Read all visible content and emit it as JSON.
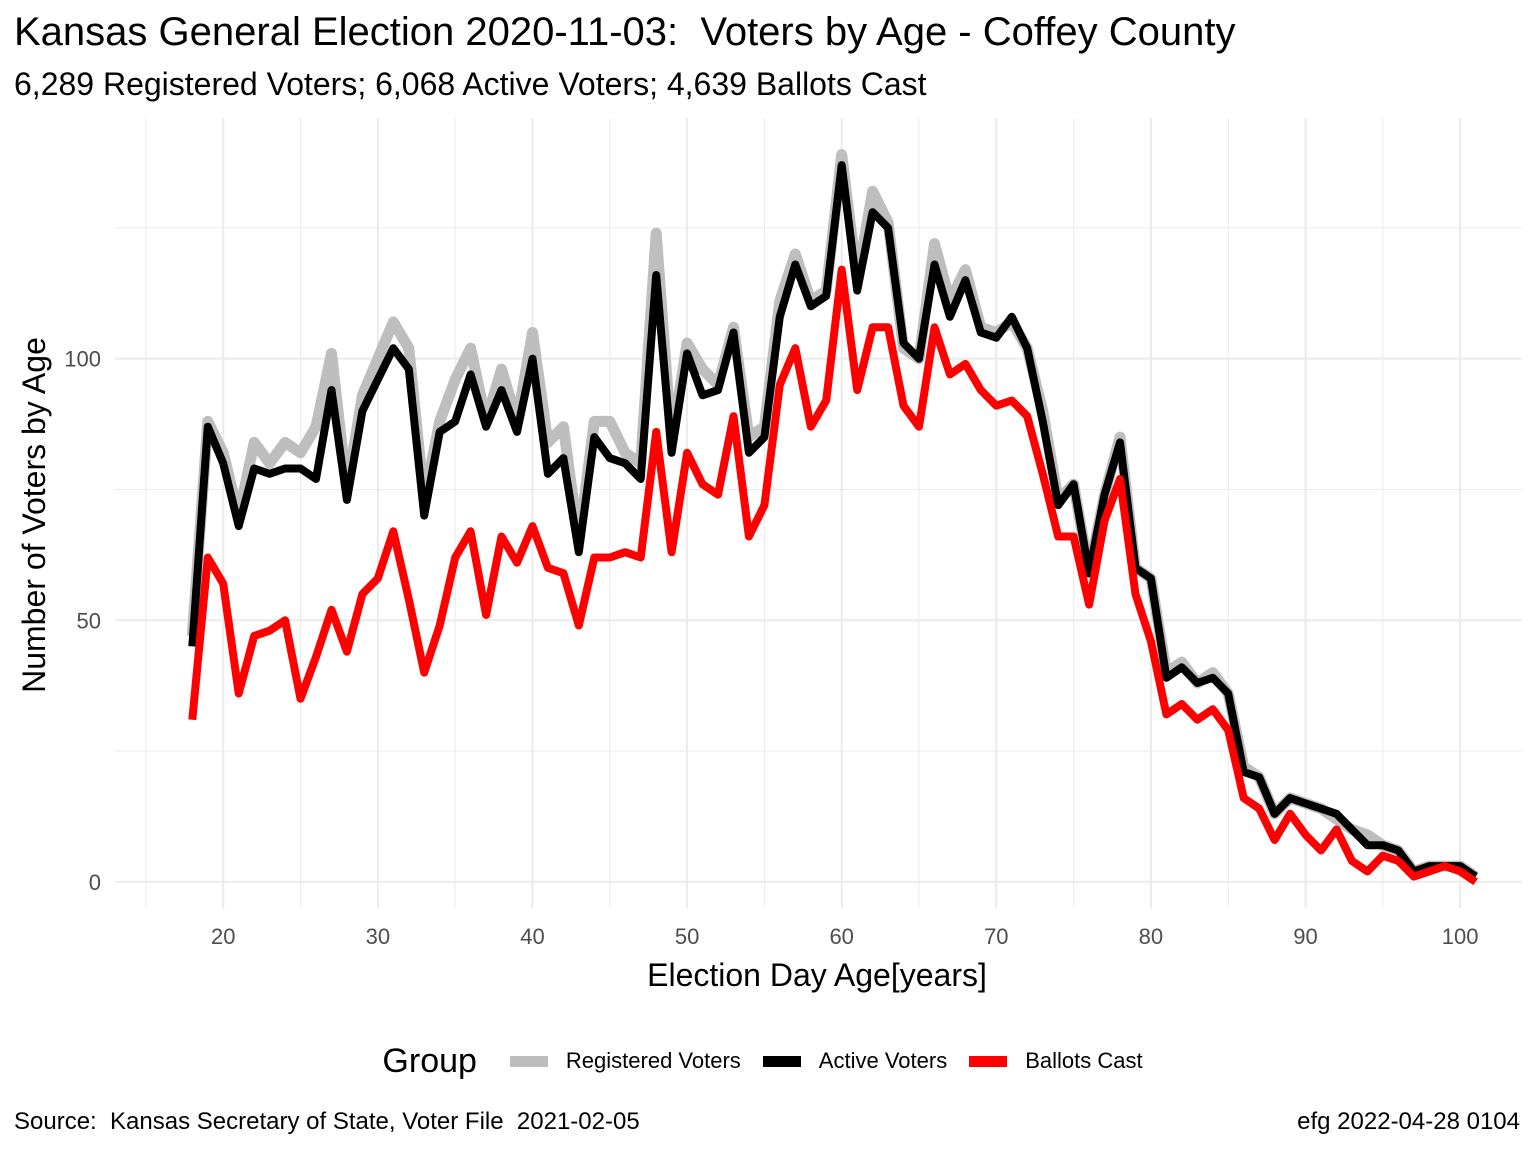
{
  "title": "Kansas General Election 2020-11-03:  Voters by Age - Coffey County",
  "subtitle": "6,289 Registered Voters; 6,068 Active Voters; 4,639 Ballots Cast",
  "caption_left": "Source:  Kansas Secretary of State, Voter File  2021-02-05",
  "caption_right": "efg 2022-04-28 0104",
  "legend": {
    "title": "Group"
  },
  "chart_data": {
    "type": "line",
    "xlabel": "Election Day Age[years]",
    "ylabel": "Number of Voters by Age",
    "xlim": [
      13,
      104
    ],
    "ylim": [
      -5,
      146
    ],
    "x_ticks": [
      20,
      30,
      40,
      50,
      60,
      70,
      80,
      90,
      100
    ],
    "y_ticks": [
      0,
      50,
      100
    ],
    "grid": true,
    "legend_position": "bottom",
    "x": [
      18,
      19,
      20,
      21,
      22,
      23,
      24,
      25,
      26,
      27,
      28,
      29,
      30,
      31,
      32,
      33,
      34,
      35,
      36,
      37,
      38,
      39,
      40,
      41,
      42,
      43,
      44,
      45,
      46,
      47,
      48,
      49,
      50,
      51,
      52,
      53,
      54,
      55,
      56,
      57,
      58,
      59,
      60,
      61,
      62,
      63,
      64,
      65,
      66,
      67,
      68,
      69,
      70,
      71,
      72,
      73,
      74,
      75,
      76,
      77,
      78,
      79,
      80,
      81,
      82,
      83,
      84,
      85,
      86,
      87,
      88,
      89,
      90,
      91,
      92,
      93,
      94,
      95,
      96,
      97,
      98,
      99,
      100,
      101
    ],
    "series": [
      {
        "name": "Registered Voters",
        "color": "#bebebe",
        "values": [
          47,
          88,
          82,
          70,
          84,
          80,
          84,
          82,
          87,
          101,
          75,
          93,
          100,
          107,
          102,
          73,
          88,
          96,
          102,
          88,
          98,
          88,
          105,
          84,
          87,
          65,
          88,
          88,
          82,
          80,
          124,
          84,
          103,
          98,
          95,
          106,
          85,
          87,
          111,
          120,
          111,
          113,
          139,
          115,
          132,
          126,
          102,
          100,
          122,
          111,
          117,
          106,
          105,
          107,
          102,
          90,
          73,
          76,
          59,
          74,
          85,
          60,
          58,
          40,
          42,
          38,
          40,
          36,
          22,
          20,
          13,
          16,
          15,
          14,
          12,
          10,
          9,
          7,
          6,
          2,
          3,
          3,
          3,
          1
        ]
      },
      {
        "name": "Active Voters",
        "color": "#000000",
        "values": [
          45,
          87,
          80,
          68,
          79,
          78,
          79,
          79,
          77,
          94,
          73,
          90,
          96,
          102,
          98,
          70,
          86,
          88,
          97,
          87,
          94,
          86,
          100,
          78,
          81,
          63,
          85,
          81,
          80,
          77,
          116,
          82,
          101,
          93,
          94,
          105,
          82,
          85,
          108,
          118,
          110,
          112,
          137,
          113,
          128,
          125,
          103,
          100,
          118,
          108,
          115,
          105,
          104,
          108,
          102,
          88,
          72,
          76,
          59,
          74,
          84,
          60,
          58,
          39,
          41,
          38,
          39,
          36,
          21,
          20,
          13,
          16,
          15,
          14,
          13,
          10,
          7,
          7,
          6,
          2,
          3,
          3,
          3,
          1
        ]
      },
      {
        "name": "Ballots Cast",
        "color": "#ff0000",
        "values": [
          31,
          62,
          57,
          36,
          47,
          48,
          50,
          35,
          43,
          52,
          44,
          55,
          58,
          67,
          54,
          40,
          49,
          62,
          67,
          51,
          66,
          61,
          68,
          60,
          59,
          49,
          62,
          62,
          63,
          62,
          86,
          63,
          82,
          76,
          74,
          89,
          66,
          72,
          95,
          102,
          87,
          92,
          117,
          94,
          106,
          106,
          91,
          87,
          106,
          97,
          99,
          94,
          91,
          92,
          89,
          78,
          66,
          66,
          53,
          69,
          77,
          55,
          46,
          32,
          34,
          31,
          33,
          29,
          16,
          14,
          8,
          13,
          9,
          6,
          10,
          4,
          2,
          5,
          4,
          1,
          2,
          3,
          2,
          0
        ]
      }
    ]
  }
}
